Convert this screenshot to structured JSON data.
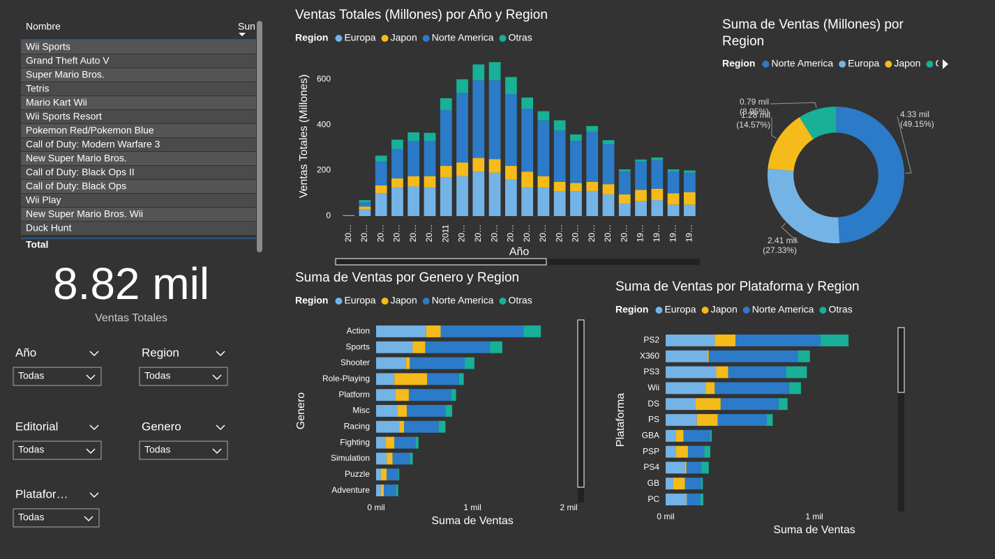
{
  "table": {
    "columns": [
      "Nombre",
      "Sun"
    ],
    "rows": [
      "Wii Sports",
      "Grand Theft Auto V",
      "Super Mario Bros.",
      "Tetris",
      "Mario Kart Wii",
      "Wii Sports Resort",
      "Pokemon Red/Pokemon Blue",
      "Call of Duty: Modern Warfare 3",
      "New Super Mario Bros.",
      "Call of Duty: Black Ops II",
      "Call of Duty: Black Ops",
      "Wii Play",
      "New Super Mario Bros. Wii",
      "Duck Hunt"
    ],
    "total": "Total"
  },
  "card": {
    "value": "8.82 mil",
    "label": "Ventas Totales"
  },
  "slicers": [
    {
      "label": "Año",
      "value": "Todas"
    },
    {
      "label": "Region",
      "value": "Todas"
    },
    {
      "label": "Editorial",
      "value": "Todas"
    },
    {
      "label": "Genero",
      "value": "Todas"
    },
    {
      "label": "Platafor…",
      "value": "Todas"
    }
  ],
  "chart_data": [
    {
      "type": "bar",
      "orientation": "vertical",
      "title": "Ventas Totales (Millones) por Año y Region",
      "legend_title": "Region",
      "xlabel": "Año",
      "ylabel": "Ventas Totales (Millones)",
      "categories": [
        "20…",
        "20…",
        "20…",
        "20…",
        "20…",
        "20…",
        "2011",
        "20…",
        "20…",
        "20…",
        "20…",
        "20…",
        "20…",
        "20…",
        "20…",
        "20…",
        "20…",
        "20…",
        "19…",
        "19…",
        "19…",
        "19…"
      ],
      "series": [
        {
          "name": "Europa",
          "color": "#74b3e6",
          "values": [
            1,
            30,
            100,
            125,
            130,
            125,
            170,
            175,
            195,
            190,
            160,
            125,
            125,
            110,
            110,
            110,
            95,
            55,
            65,
            70,
            50,
            50
          ]
        },
        {
          "name": "Japon",
          "color": "#f5bb1a",
          "values": [
            2,
            12,
            35,
            40,
            45,
            50,
            50,
            60,
            60,
            60,
            60,
            70,
            50,
            40,
            35,
            40,
            45,
            40,
            50,
            50,
            50,
            55
          ]
        },
        {
          "name": "Norte America",
          "color": "#2b7bc8",
          "values": [
            2,
            18,
            105,
            130,
            155,
            155,
            245,
            305,
            340,
            345,
            315,
            275,
            245,
            225,
            185,
            220,
            175,
            100,
            125,
            125,
            95,
            85
          ]
        },
        {
          "name": "Otras",
          "color": "#18b096",
          "values": [
            0,
            10,
            25,
            40,
            37,
            35,
            52,
            60,
            70,
            80,
            75,
            50,
            40,
            45,
            28,
            25,
            18,
            10,
            8,
            12,
            10,
            10
          ]
        }
      ],
      "ylim": [
        0,
        700
      ],
      "yticks": [
        0,
        200,
        400,
        600
      ]
    },
    {
      "type": "pie",
      "title": "Suma de Ventas (Millones) por Region",
      "legend_title": "Region",
      "hole": true,
      "categories": [
        "Norte America",
        "Europa",
        "Japon",
        "Otras"
      ],
      "colors": [
        "#2b7bc8",
        "#74b3e6",
        "#f5bb1a",
        "#18b096"
      ],
      "values": [
        49.15,
        27.33,
        14.57,
        8.95
      ],
      "value_labels": [
        "4.33 mil (49.15%)",
        "2.41 mil (27.33%)",
        "1.28 mil (14.57%)",
        "0.79 mil (8.95%)"
      ]
    },
    {
      "type": "bar",
      "orientation": "horizontal",
      "title": "Suma de Ventas por Genero y Region",
      "legend_title": "Region",
      "xlabel": "Suma de Ventas",
      "ylabel": "Genero",
      "categories": [
        "Action",
        "Sports",
        "Shooter",
        "Role-Playing",
        "Platform",
        "Misc",
        "Racing",
        "Fighting",
        "Simulation",
        "Puzzle",
        "Adventure"
      ],
      "series": [
        {
          "name": "Europa",
          "color": "#74b3e6",
          "values": [
            0.52,
            0.38,
            0.31,
            0.19,
            0.2,
            0.22,
            0.24,
            0.1,
            0.11,
            0.05,
            0.05
          ]
        },
        {
          "name": "Japon",
          "color": "#f5bb1a",
          "values": [
            0.15,
            0.13,
            0.04,
            0.34,
            0.14,
            0.1,
            0.05,
            0.09,
            0.06,
            0.06,
            0.03
          ]
        },
        {
          "name": "Norte America",
          "color": "#2b7bc8",
          "values": [
            0.86,
            0.67,
            0.57,
            0.33,
            0.44,
            0.4,
            0.36,
            0.22,
            0.18,
            0.12,
            0.13
          ]
        },
        {
          "name": "Otras",
          "color": "#18b096",
          "values": [
            0.18,
            0.13,
            0.1,
            0.05,
            0.05,
            0.07,
            0.07,
            0.03,
            0.03,
            0.01,
            0.02
          ]
        }
      ],
      "xlim": [
        0,
        2.1
      ],
      "xticks": [
        {
          "value": 0,
          "label": "0 mil"
        },
        {
          "value": 1,
          "label": "1 mil"
        },
        {
          "value": 2,
          "label": "2 mil"
        }
      ]
    },
    {
      "type": "bar",
      "orientation": "horizontal",
      "title": "Suma de Ventas por Plataforma y Region",
      "legend_title": "Region",
      "xlabel": "Suma de Ventas",
      "ylabel": "Plataforma",
      "categories": [
        "PS2",
        "X360",
        "PS3",
        "Wii",
        "DS",
        "PS",
        "GBA",
        "PSP",
        "PS4",
        "GB",
        "PC"
      ],
      "series": [
        {
          "name": "Europa",
          "color": "#74b3e6",
          "values": [
            0.33,
            0.28,
            0.34,
            0.27,
            0.2,
            0.21,
            0.07,
            0.07,
            0.13,
            0.05,
            0.14
          ]
        },
        {
          "name": "Japon",
          "color": "#f5bb1a",
          "values": [
            0.14,
            0.01,
            0.08,
            0.06,
            0.17,
            0.14,
            0.05,
            0.08,
            0.01,
            0.08,
            0.003
          ]
        },
        {
          "name": "Norte America",
          "color": "#2b7bc8",
          "values": [
            0.57,
            0.6,
            0.39,
            0.5,
            0.39,
            0.33,
            0.18,
            0.11,
            0.1,
            0.11,
            0.09
          ]
        },
        {
          "name": "Otras",
          "color": "#18b096",
          "values": [
            0.19,
            0.08,
            0.14,
            0.08,
            0.06,
            0.04,
            0.01,
            0.04,
            0.05,
            0.01,
            0.02
          ]
        }
      ],
      "xlim": [
        0,
        1.3
      ],
      "xticks": [
        {
          "value": 0,
          "label": "0 mil"
        },
        {
          "value": 1,
          "label": "1 mil"
        }
      ]
    }
  ]
}
